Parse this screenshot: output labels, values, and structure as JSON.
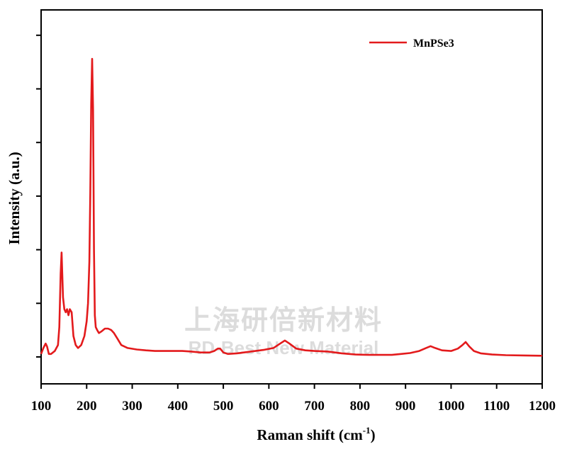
{
  "chart_data": {
    "type": "line",
    "xlabel_main": "Raman shift (cm",
    "xlabel_sup": "-1",
    "xlabel_close": ")",
    "ylabel": "Intensity (a.u.)",
    "xlim": [
      100,
      1200
    ],
    "ylim": [
      0,
      1
    ],
    "x_ticks": [
      "100",
      "200",
      "300",
      "400",
      "500",
      "600",
      "700",
      "800",
      "900",
      "1000",
      "1100",
      "1200"
    ],
    "y_ticks_labeled": false,
    "grid": false,
    "legend": {
      "position": "top-right",
      "label": "MnPSe3",
      "color": "#e31a1c"
    },
    "series": [
      {
        "name": "MnPSe3",
        "color": "#e31a1c",
        "x": [
          100,
          105,
          110,
          113,
          117,
          122,
          130,
          137,
          140,
          143,
          145,
          148,
          151,
          154,
          157,
          160,
          163,
          167,
          171,
          176,
          181,
          188,
          195,
          200,
          203,
          206,
          208,
          210,
          212,
          214,
          216,
          218,
          220,
          223,
          227,
          232,
          240,
          247,
          254,
          260,
          268,
          276,
          290,
          310,
          330,
          350,
          370,
          390,
          410,
          430,
          450,
          470,
          480,
          488,
          493,
          500,
          510,
          530,
          560,
          590,
          610,
          625,
          635,
          645,
          660,
          680,
          700,
          730,
          760,
          790,
          820,
          850,
          870,
          890,
          910,
          930,
          945,
          955,
          965,
          980,
          1000,
          1015,
          1025,
          1032,
          1040,
          1050,
          1065,
          1090,
          1120,
          1160,
          1200
        ],
        "y": [
          0.01,
          0.03,
          0.045,
          0.035,
          0.01,
          0.01,
          0.02,
          0.04,
          0.1,
          0.28,
          0.35,
          0.2,
          0.16,
          0.15,
          0.16,
          0.14,
          0.16,
          0.15,
          0.07,
          0.04,
          0.03,
          0.04,
          0.07,
          0.12,
          0.18,
          0.32,
          0.55,
          0.85,
          1.0,
          0.83,
          0.36,
          0.14,
          0.1,
          0.09,
          0.08,
          0.085,
          0.095,
          0.095,
          0.09,
          0.08,
          0.06,
          0.04,
          0.03,
          0.025,
          0.022,
          0.02,
          0.02,
          0.02,
          0.02,
          0.018,
          0.015,
          0.015,
          0.02,
          0.028,
          0.028,
          0.015,
          0.01,
          0.012,
          0.018,
          0.024,
          0.03,
          0.045,
          0.055,
          0.045,
          0.028,
          0.022,
          0.02,
          0.018,
          0.012,
          0.008,
          0.007,
          0.007,
          0.007,
          0.01,
          0.013,
          0.02,
          0.03,
          0.036,
          0.03,
          0.022,
          0.02,
          0.028,
          0.04,
          0.05,
          0.035,
          0.02,
          0.012,
          0.008,
          0.006,
          0.005,
          0.004
        ]
      }
    ]
  },
  "watermark": {
    "line1": "上海研倍新材料",
    "line2": "RD-Best New Material"
  },
  "colors": {
    "axis": "#000000",
    "series": "#e31a1c"
  }
}
